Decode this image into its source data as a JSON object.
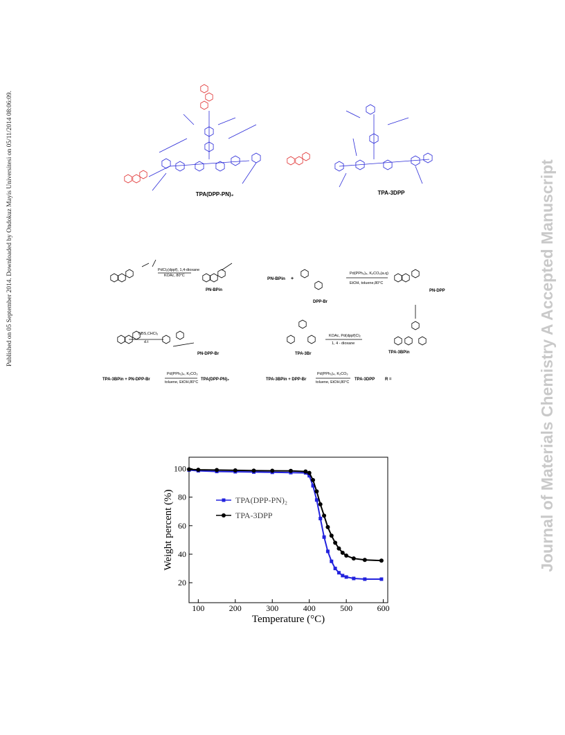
{
  "sidebar": {
    "left_note": "Published on 05 September 2014. Downloaded by Ondokuz Mayis Universitesi on 05/11/2014 08:06:09.",
    "watermark": "Journal of Materials Chemistry A Accepted Manuscript"
  },
  "structures": {
    "labels": [
      "TPA(DPP-PN)₂",
      "TPA-3DPP"
    ]
  },
  "scheme": {
    "compounds": [
      "PN-BPin",
      "DPP-Br",
      "PN-DPP",
      "PN-DPP-Br",
      "TPA-3Br",
      "TPA-3BPin"
    ],
    "conditions": [
      "PdCl₂(dppf), 1,4-dioxane",
      "KOAc, 80°C",
      "Pd(PPh₃)₄, K₂CO₃(a.q)",
      "EtOH, toluene,80°C",
      "NBS,CHCl₃",
      "d.t",
      "KOAc, Pd(dppf)Cl₂",
      "1, 4 - dioxane",
      "Pd(PPh₃)₄, K₂CO₃",
      "toluene, EtOH,80°C",
      "Pd(PPh₃)₄, K₂CO₃",
      "toluene, EtOH,80°C"
    ],
    "equations": [
      "PN-BPin",
      "+",
      "TPA-3BPin + PN-DPP-Br",
      "TPA(DPP-PN)₂",
      "TPA-3BPin + DPP-Br",
      "TPA-3DPP",
      "R ="
    ]
  },
  "chart_data": {
    "type": "line",
    "xlabel": "Temperature (°C)",
    "ylabel": "Weight percent (%)",
    "x": [
      75,
      100,
      150,
      200,
      250,
      300,
      350,
      390,
      400,
      410,
      420,
      430,
      440,
      450,
      460,
      470,
      480,
      490,
      500,
      520,
      550,
      595
    ],
    "series": [
      {
        "name": "TPA(DPP-PN)₂",
        "color": "#2222dd",
        "values": [
          99,
          98.5,
          98,
          97.8,
          97.6,
          97.4,
          97.2,
          97,
          95,
          88,
          78,
          65,
          52,
          42,
          35,
          30,
          27,
          25,
          24,
          23,
          22.5,
          22.5
        ]
      },
      {
        "name": "TPA-3DPP",
        "color": "#000000",
        "values": [
          99.5,
          99.2,
          99,
          98.8,
          98.6,
          98.5,
          98.4,
          98,
          97,
          92,
          84,
          75,
          67,
          59,
          53,
          48,
          44,
          41,
          39,
          37,
          36,
          35.5
        ]
      }
    ],
    "xlim": [
      75,
      612
    ],
    "ylim": [
      6,
      108
    ],
    "xticks": [
      100,
      200,
      300,
      400,
      500,
      600
    ],
    "yticks": [
      20,
      40,
      60,
      80,
      100
    ]
  }
}
